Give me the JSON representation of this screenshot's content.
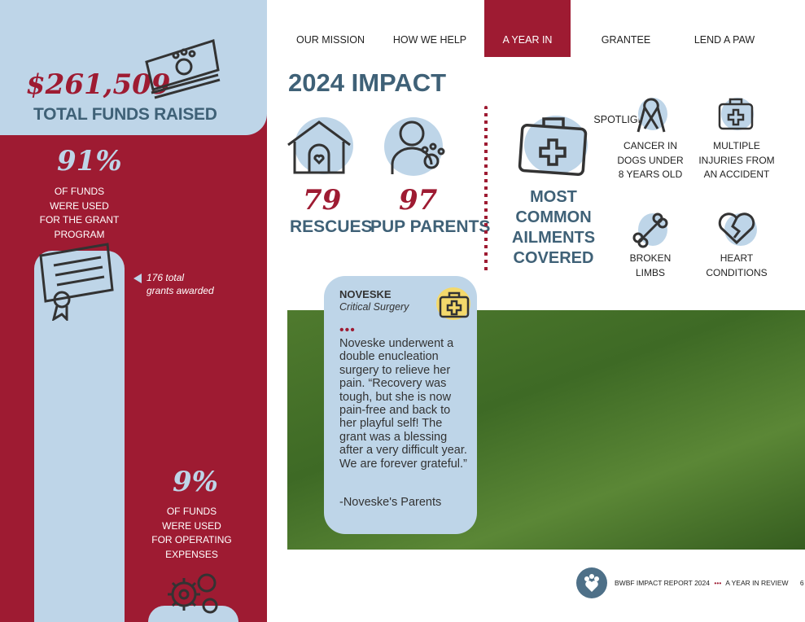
{
  "nav": {
    "items": [
      "OUR MISSION",
      "HOW WE HELP",
      "A YEAR IN REVIEW",
      "GRANTEE SPOTLIGHTS",
      "LEND A PAW"
    ],
    "active_index": 2
  },
  "left": {
    "funds_amount": "$261,509",
    "funds_label": "TOTAL FUNDS RAISED",
    "grant_pct": "91%",
    "grant_text": [
      "OF FUNDS",
      "WERE USED",
      "FOR THE GRANT",
      "PROGRAM"
    ],
    "grants_note": [
      "176 total",
      "grants awarded"
    ],
    "op_pct": "9%",
    "op_text": [
      "OF FUNDS",
      "WERE USED",
      "FOR OPERATING",
      "EXPENSES"
    ]
  },
  "impact": {
    "title": "2024 IMPACT",
    "rescues_value": "79",
    "rescues_label": "RESCUES",
    "parents_value": "97",
    "parents_label": "PUP PARENTS",
    "ailments_heading": [
      "MOST",
      "COMMON",
      "AILMENTS",
      "COVERED"
    ],
    "ailments": [
      {
        "lines": [
          "CANCER IN",
          "DOGS UNDER",
          "8 YEARS OLD"
        ],
        "icon": "ribbon-icon"
      },
      {
        "lines": [
          "MULTIPLE",
          "INJURIES FROM",
          "AN ACCIDENT"
        ],
        "icon": "first-aid-kit-icon"
      },
      {
        "lines": [
          "BROKEN",
          "LIMBS"
        ],
        "icon": "bone-icon"
      },
      {
        "lines": [
          "HEART",
          "CONDITIONS"
        ],
        "icon": "broken-heart-icon"
      }
    ]
  },
  "story": {
    "name": "NOVESKE",
    "subtitle": "Critical Surgery",
    "quote": "Noveske underwent a double enucleation surgery to relieve her pain. “Recovery was tough, but she is now pain-free and back to her playful self! The grant was a blessing after a very difficult year. We are forever grateful.”",
    "attribution": "-Noveske's Parents"
  },
  "footer": {
    "report": "BWBF IMPACT REPORT 2024",
    "section": "A YEAR IN REVIEW",
    "page": "6"
  },
  "colors": {
    "crimson": "#9e1b32",
    "light_blue": "#bed5e8",
    "slate": "#3f6177"
  }
}
